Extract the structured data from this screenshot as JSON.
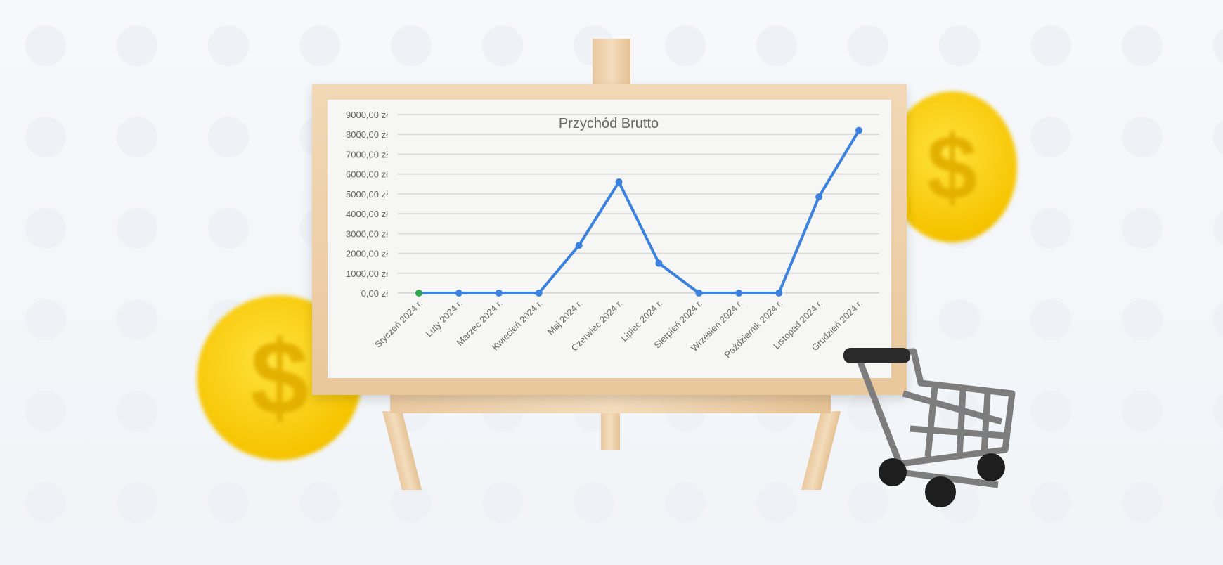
{
  "chart_data": {
    "type": "line",
    "title": "Przychód Brutto",
    "categories": [
      "Styczeń 2024 r.",
      "Luty 2024 r.",
      "Marzec 2024 r.",
      "Kwiecień 2024 r.",
      "Maj 2024 r.",
      "Czerwiec 2024 r.",
      "Lipiec 2024 r.",
      "Sierpień 2024 r.",
      "Wrzesień 2024 r.",
      "Październik 2024 r.",
      "Listopad 2024 r.",
      "Grudzień 2024 r."
    ],
    "values": [
      0,
      0,
      0,
      0,
      2400,
      5600,
      1500,
      0,
      0,
      0,
      4850,
      8200
    ],
    "yticks": [
      "0,00 zł",
      "1000,00 zł",
      "2000,00 zł",
      "3000,00 zł",
      "4000,00 zł",
      "5000,00 zł",
      "6000,00 zł",
      "7000,00 zł",
      "8000,00 zł",
      "9000,00 zł"
    ],
    "ylim": [
      0,
      9000
    ],
    "grid": true,
    "line_color": "#3b82e0",
    "first_point_color": "#2ea84f"
  },
  "decor": {
    "coin_symbol": "$"
  }
}
